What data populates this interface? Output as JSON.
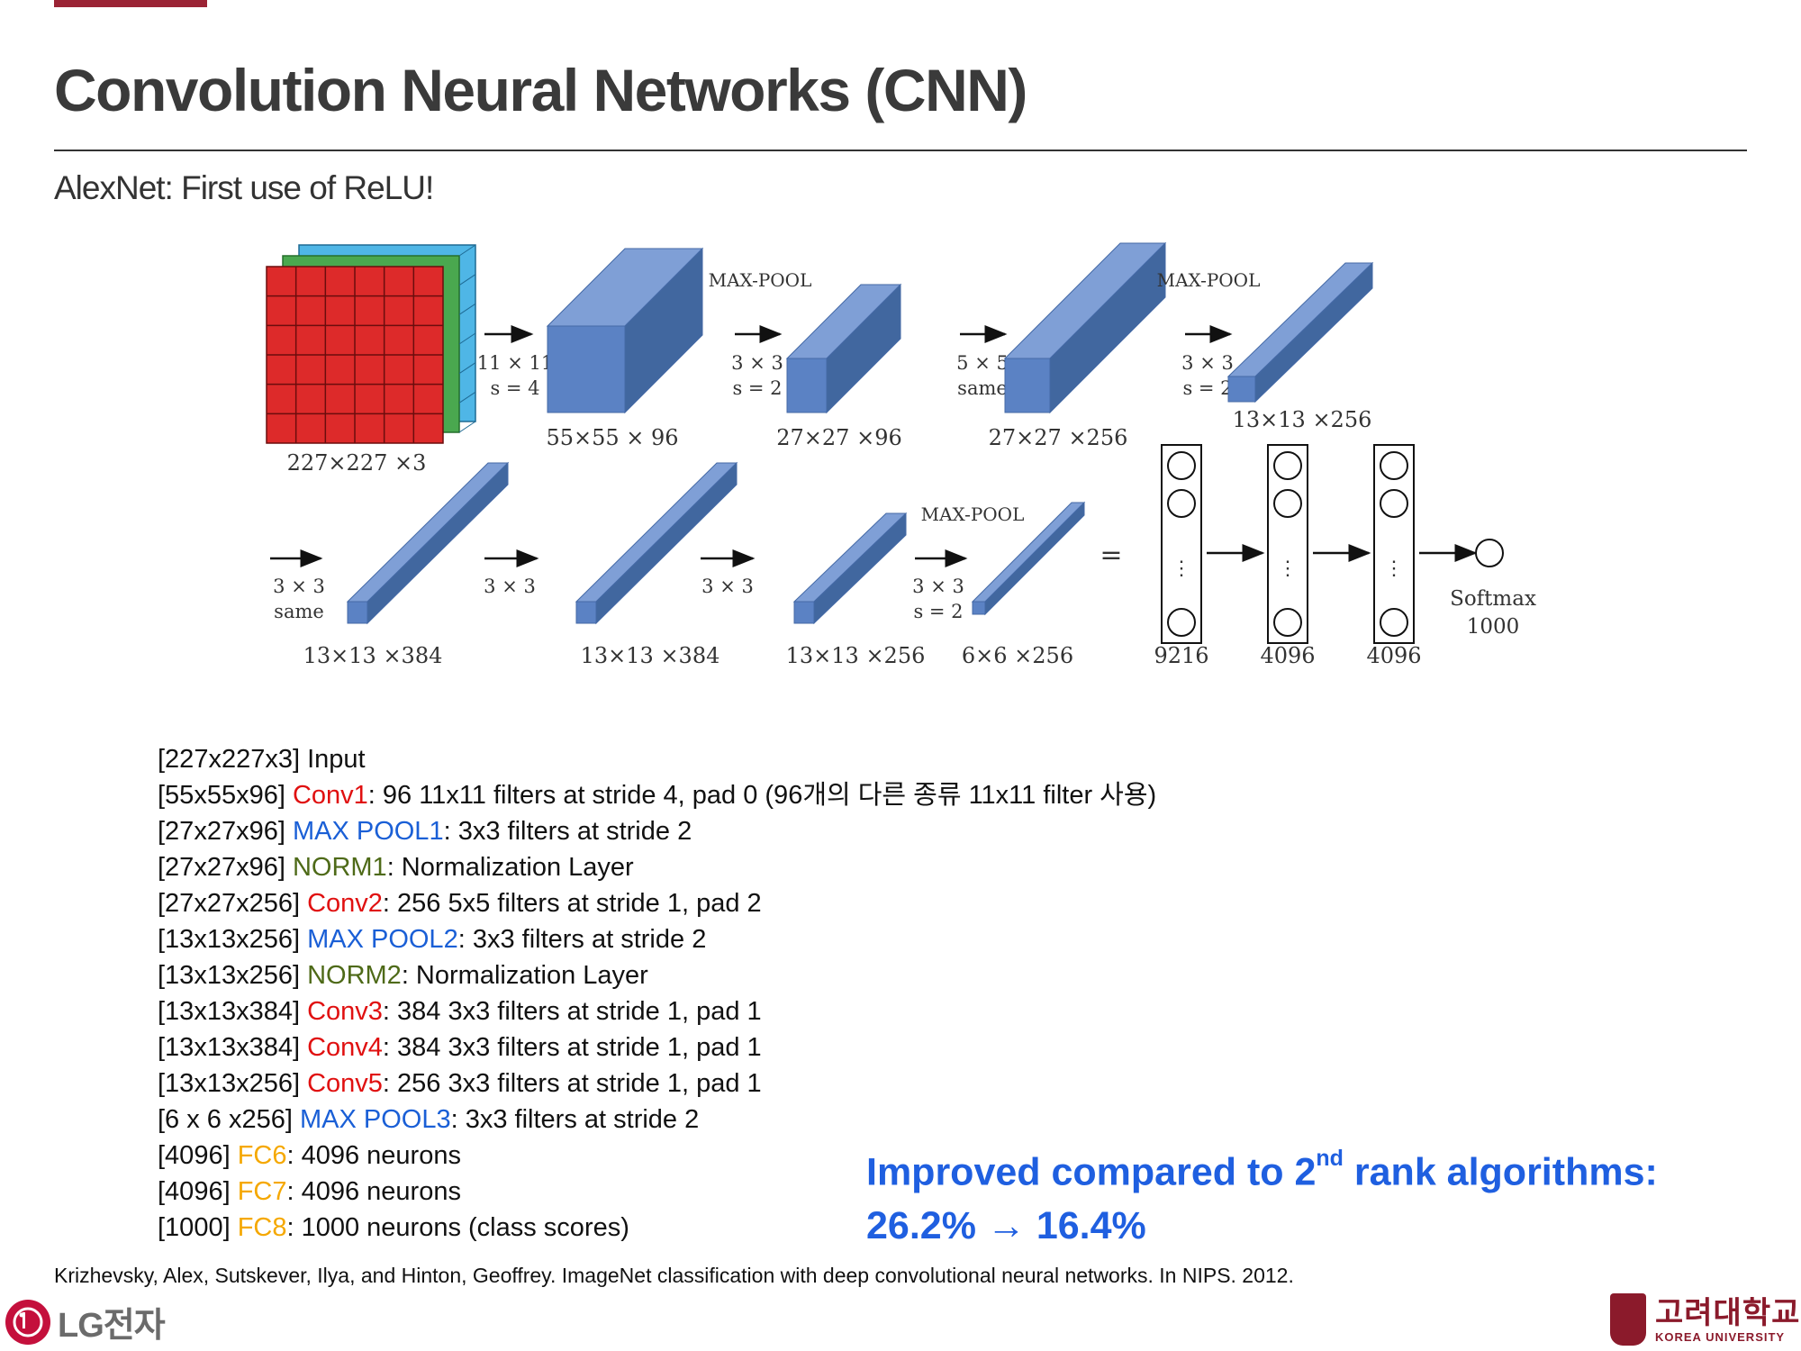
{
  "slide": {
    "title": "Convolution Neural Networks (CNN)",
    "subtitle": "AlexNet: First use of ReLU!"
  },
  "diagram": {
    "input_label": "227×227 ×3",
    "row1": {
      "op1": [
        "11 × 11",
        "s = 4"
      ],
      "vol1": "55×55 × 96",
      "pool1_title": "MAX-POOL",
      "op2": [
        "3 × 3",
        "s = 2"
      ],
      "vol2": "27×27 ×96",
      "op3": [
        "5 × 5",
        "same"
      ],
      "vol3": "27×27 ×256",
      "pool2_title": "MAX-POOL",
      "op4": [
        "3 × 3",
        "s = 2"
      ],
      "vol4": "13×13 ×256"
    },
    "row2": {
      "op1": [
        "3 × 3",
        "same"
      ],
      "vol1": "13×13 ×384",
      "op2": "3 × 3",
      "vol2": "13×13 ×384",
      "op3": "3 × 3",
      "vol3": "13×13 ×256",
      "pool_title": "MAX-POOL",
      "op4": [
        "3 × 3",
        "s = 2"
      ],
      "vol4": "6×6 ×256",
      "equals": "=",
      "fc_sizes": [
        "9216",
        "4096",
        "4096"
      ],
      "dots": "⋮",
      "softmax": [
        "Softmax",
        "1000"
      ]
    }
  },
  "layers": [
    [
      {
        "t": "[227x227x3] Input",
        "c": ""
      }
    ],
    [
      {
        "t": "[55x55x96] ",
        "c": ""
      },
      {
        "t": "Conv1",
        "c": "conv"
      },
      {
        "t": ": 96 11x11 filters at stride 4, pad 0 (96개의 다른 종류 11x11 filter 사용)",
        "c": ""
      }
    ],
    [
      {
        "t": "[27x27x96] ",
        "c": ""
      },
      {
        "t": "MAX POOL1",
        "c": "pool"
      },
      {
        "t": ": 3x3 filters at stride 2",
        "c": ""
      }
    ],
    [
      {
        "t": "[27x27x96] ",
        "c": ""
      },
      {
        "t": "NORM1",
        "c": "norm"
      },
      {
        "t": ": Normalization Layer",
        "c": ""
      }
    ],
    [
      {
        "t": "[27x27x256] ",
        "c": ""
      },
      {
        "t": "Conv2",
        "c": "conv"
      },
      {
        "t": ": 256 5x5 filters at stride 1, pad 2",
        "c": ""
      }
    ],
    [
      {
        "t": "[13x13x256] ",
        "c": ""
      },
      {
        "t": "MAX POOL2",
        "c": "pool"
      },
      {
        "t": ": 3x3 filters at stride 2",
        "c": ""
      }
    ],
    [
      {
        "t": "[13x13x256] ",
        "c": ""
      },
      {
        "t": "NORM2",
        "c": "norm"
      },
      {
        "t": ": Normalization Layer",
        "c": ""
      }
    ],
    [
      {
        "t": "[13x13x384] ",
        "c": ""
      },
      {
        "t": "Conv3",
        "c": "conv"
      },
      {
        "t": ": 384 3x3 filters at stride 1, pad 1",
        "c": ""
      }
    ],
    [
      {
        "t": "[13x13x384] ",
        "c": ""
      },
      {
        "t": "Conv4",
        "c": "conv"
      },
      {
        "t": ": 384 3x3 filters at stride 1, pad 1",
        "c": ""
      }
    ],
    [
      {
        "t": "[13x13x256] ",
        "c": ""
      },
      {
        "t": "Conv5",
        "c": "conv"
      },
      {
        "t": ": 256 3x3 filters at stride 1, pad 1",
        "c": ""
      }
    ],
    [
      {
        "t": "[6 x 6 x256] ",
        "c": ""
      },
      {
        "t": "MAX POOL3",
        "c": "pool"
      },
      {
        "t": ": 3x3 filters at stride 2",
        "c": ""
      }
    ],
    [
      {
        "t": "[4096] ",
        "c": ""
      },
      {
        "t": "FC6",
        "c": "fc"
      },
      {
        "t": ": 4096 neurons",
        "c": ""
      }
    ],
    [
      {
        "t": "[4096] ",
        "c": ""
      },
      {
        "t": "FC7",
        "c": "fc"
      },
      {
        "t": ": 4096 neurons",
        "c": ""
      }
    ],
    [
      {
        "t": "[1000] ",
        "c": ""
      },
      {
        "t": "FC8",
        "c": "fc"
      },
      {
        "t": ": 1000 neurons (class scores)",
        "c": ""
      }
    ]
  ],
  "improved": {
    "line1_pre": "Improved compared to 2",
    "line1_sup": "nd",
    "line1_post": " rank algorithms:",
    "line2": "26.2% → 16.4%"
  },
  "citation": "Krizhevsky, Alex, Sutskever, Ilya, and Hinton, Geoffrey. ImageNet classification with deep convolutional neural networks. In NIPS. 2012.",
  "logos": {
    "lg_text": "LG전자",
    "ku_korean": "고려대학교",
    "ku_english": "KOREA UNIVERSITY"
  },
  "colors": {
    "accent": "#9b2335",
    "conv": "#e01010",
    "pool": "#1a5fd6",
    "norm": "#4e6a18",
    "fc": "#f5a800",
    "improved": "#1f5fe0",
    "box_front": "#5b82c4",
    "box_top": "#7f9fd6",
    "box_side": "#41679f"
  }
}
